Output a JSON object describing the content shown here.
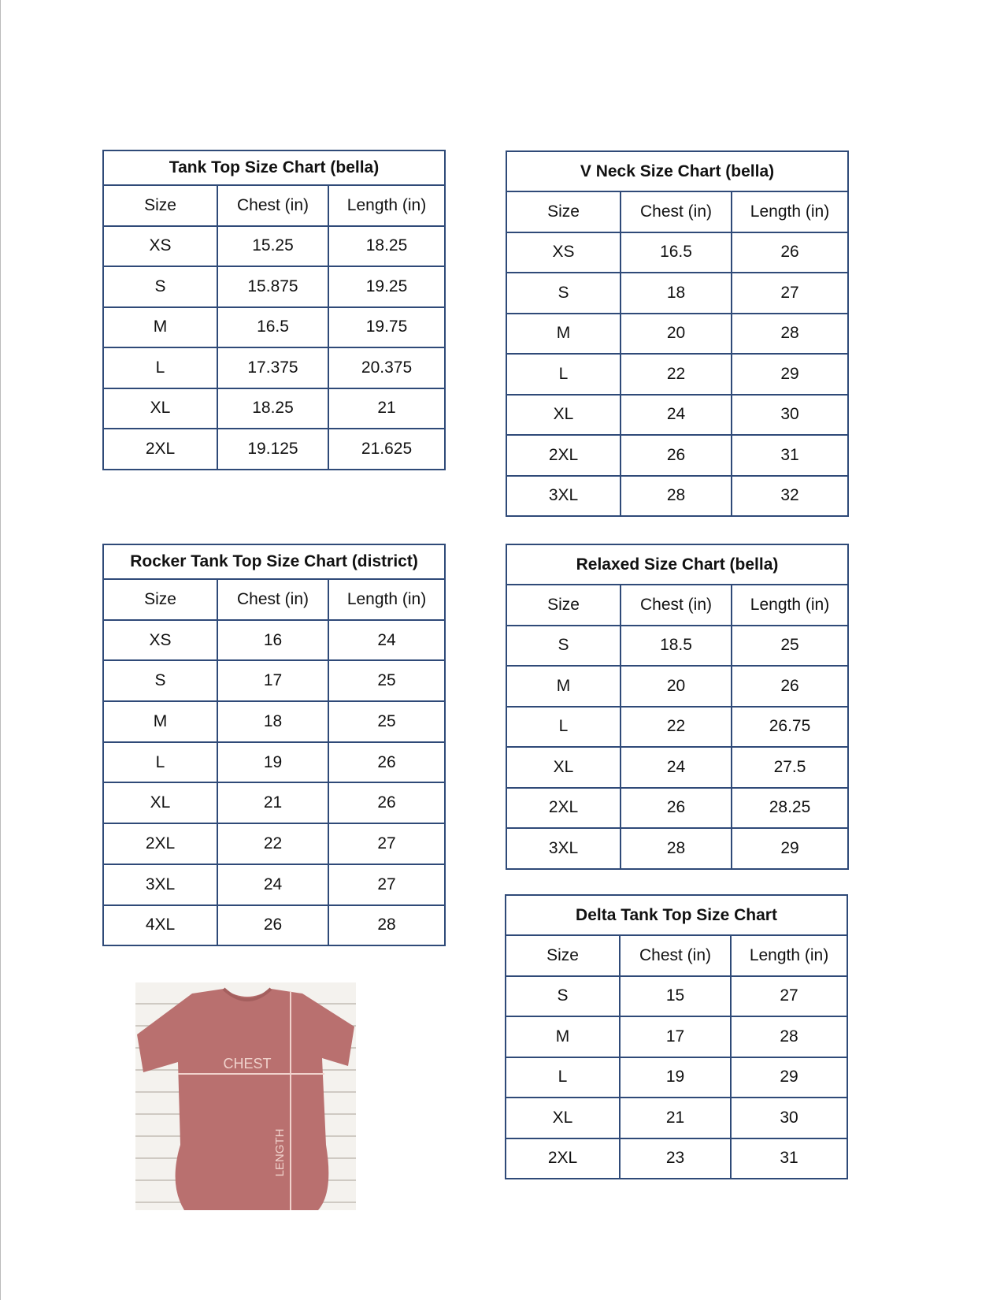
{
  "tables": [
    {
      "id": "tank-top",
      "title": "Tank Top Size Chart  (bella)",
      "headers": [
        "Size",
        "Chest (in)",
        "Length (in)"
      ],
      "rows": [
        [
          "XS",
          "15.25",
          "18.25"
        ],
        [
          "S",
          "15.875",
          "19.25"
        ],
        [
          "M",
          "16.5",
          "19.75"
        ],
        [
          "L",
          "17.375",
          "20.375"
        ],
        [
          "XL",
          "18.25",
          "21"
        ],
        [
          "2XL",
          "19.125",
          "21.625"
        ]
      ]
    },
    {
      "id": "v-neck",
      "title": "V Neck Size Chart  (bella)",
      "headers": [
        "Size",
        "Chest (in)",
        "Length (in)"
      ],
      "rows": [
        [
          "XS",
          "16.5",
          "26"
        ],
        [
          "S",
          "18",
          "27"
        ],
        [
          "M",
          "20",
          "28"
        ],
        [
          "L",
          "22",
          "29"
        ],
        [
          "XL",
          "24",
          "30"
        ],
        [
          "2XL",
          "26",
          "31"
        ],
        [
          "3XL",
          "28",
          "32"
        ]
      ]
    },
    {
      "id": "rocker-tank",
      "title": "Rocker Tank Top Size Chart (district)",
      "headers": [
        "Size",
        "Chest (in)",
        "Length (in)"
      ],
      "rows": [
        [
          "XS",
          "16",
          "24"
        ],
        [
          "S",
          "17",
          "25"
        ],
        [
          "M",
          "18",
          "25"
        ],
        [
          "L",
          "19",
          "26"
        ],
        [
          "XL",
          "21",
          "26"
        ],
        [
          "2XL",
          "22",
          "27"
        ],
        [
          "3XL",
          "24",
          "27"
        ],
        [
          "4XL",
          "26",
          "28"
        ]
      ]
    },
    {
      "id": "relaxed",
      "title": "Relaxed Size Chart (bella)",
      "headers": [
        "Size",
        "Chest (in)",
        "Length (in)"
      ],
      "rows": [
        [
          "S",
          "18.5",
          "25"
        ],
        [
          "M",
          "20",
          "26"
        ],
        [
          "L",
          "22",
          "26.75"
        ],
        [
          "XL",
          "24",
          "27.5"
        ],
        [
          "2XL",
          "26",
          "28.25"
        ],
        [
          "3XL",
          "28",
          "29"
        ]
      ]
    },
    {
      "id": "delta-tank",
      "title": "Delta Tank Top Size Chart",
      "headers": [
        "Size",
        "Chest (in)",
        "Length (in)"
      ],
      "rows": [
        [
          "S",
          "15",
          "27"
        ],
        [
          "M",
          "17",
          "28"
        ],
        [
          "L",
          "19",
          "29"
        ],
        [
          "XL",
          "21",
          "30"
        ],
        [
          "2XL",
          "23",
          "31"
        ]
      ]
    }
  ],
  "photo": {
    "chest_label": "CHEST",
    "length_label": "LENGTH",
    "shirt_color": "#b9706f"
  },
  "colors": {
    "border": "#2f4a78"
  }
}
